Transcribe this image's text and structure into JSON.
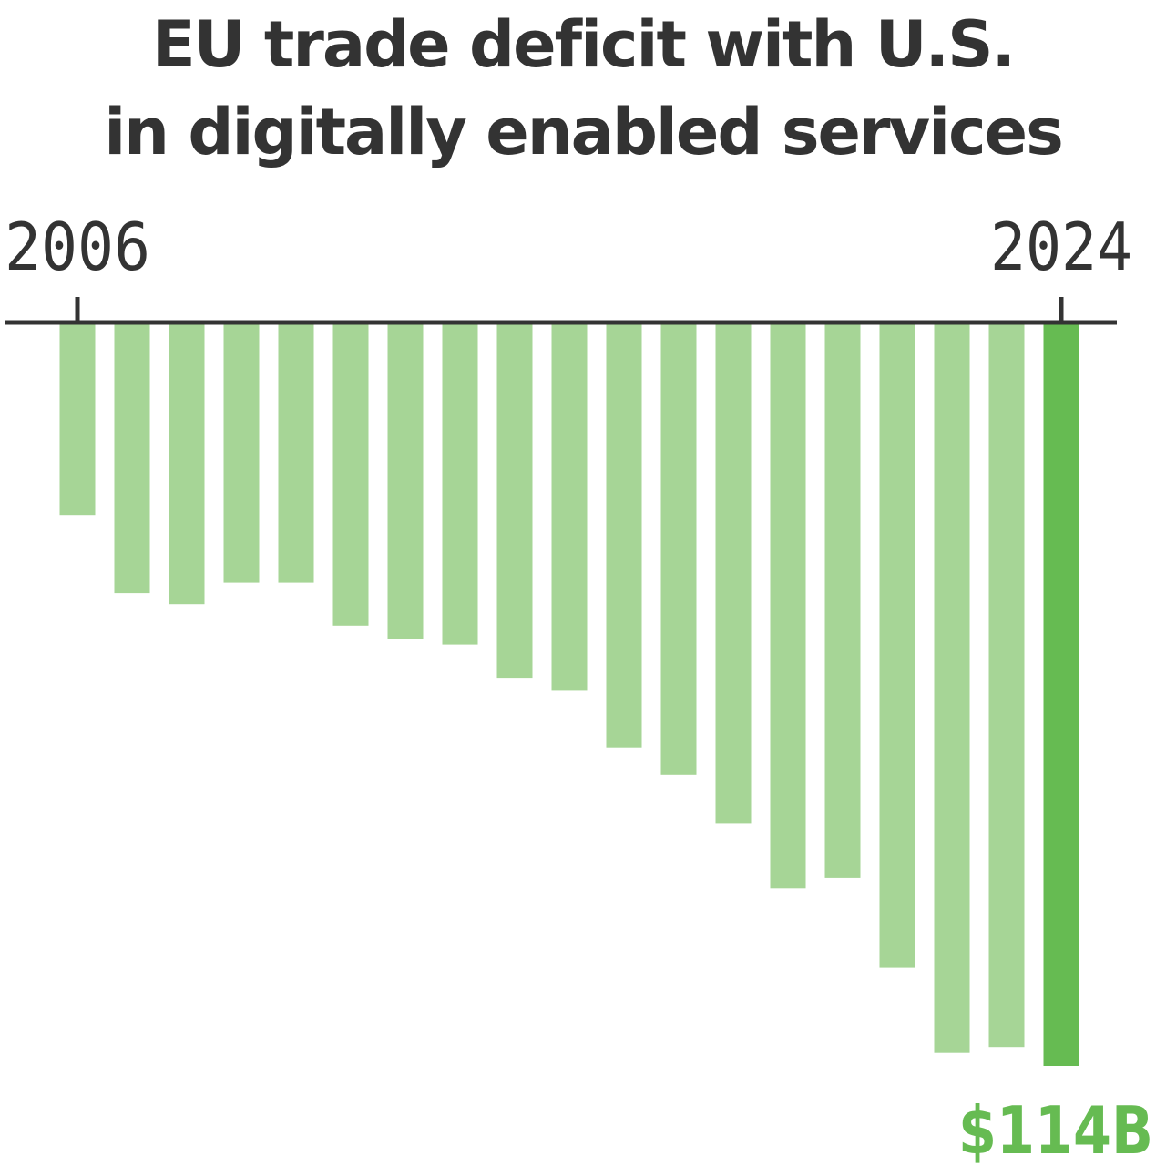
{
  "chart_data": {
    "type": "bar",
    "title_lines": [
      "EU trade deficit with U.S.",
      "in digitally enabled services"
    ],
    "x": [
      2006,
      2007,
      2008,
      2009,
      2010,
      2011,
      2012,
      2013,
      2014,
      2015,
      2016,
      2017,
      2018,
      2019,
      2020,
      2021,
      2022,
      2023,
      2024
    ],
    "tick_labels": [
      "2006",
      "2024"
    ],
    "values": [
      -29.5,
      -41.5,
      -43.2,
      -39.9,
      -39.9,
      -46.5,
      -48.6,
      -49.4,
      -54.5,
      -56.5,
      -65.2,
      -69.4,
      -76.9,
      -86.8,
      -85.2,
      -99.0,
      -112.0,
      -111.1,
      -114
    ],
    "highlight_label": "$114B",
    "ylim": [
      -114,
      0
    ],
    "grid": false,
    "colors": {
      "bar": "#a6d596",
      "highlight": "#66bb52",
      "axis": "#333333",
      "text": "#333333"
    }
  }
}
